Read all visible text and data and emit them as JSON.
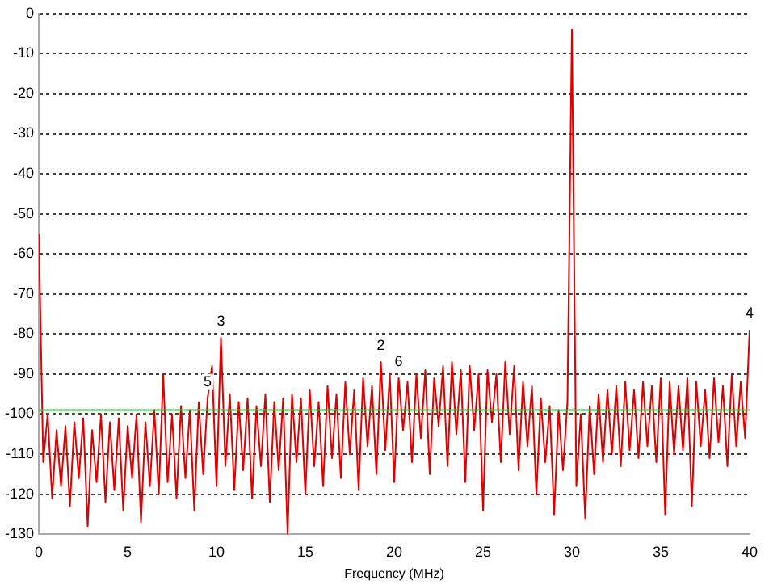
{
  "chart_data": {
    "type": "line",
    "xlabel": "Frequency (MHz)",
    "xlim": [
      0,
      40
    ],
    "xticks": [
      0,
      5,
      10,
      15,
      20,
      25,
      30,
      35,
      40
    ],
    "ylim": [
      -130,
      0
    ],
    "yticks": [
      0,
      -10,
      -20,
      -30,
      -40,
      -50,
      -60,
      -70,
      -80,
      -90,
      -100,
      -110,
      -120,
      -130
    ],
    "grid": "y",
    "legend": false,
    "marker": "none",
    "line_style": "solid",
    "ref_lines": [
      {
        "axis": "y",
        "value": -99,
        "color": "#3cb043"
      }
    ],
    "annotations": [
      {
        "text": "3",
        "x": 10.25,
        "y": -81
      },
      {
        "text": "5",
        "x": 9.5,
        "y": -96
      },
      {
        "text": "2",
        "x": 19.25,
        "y": -87
      },
      {
        "text": "6",
        "x": 20.25,
        "y": -91
      },
      {
        "text": "4",
        "x": 40,
        "y": -79
      }
    ],
    "series": [
      {
        "color": "#e00000",
        "x": [
          0,
          0.25,
          0.5,
          0.75,
          1,
          1.25,
          1.5,
          1.75,
          2,
          2.25,
          2.5,
          2.75,
          3,
          3.25,
          3.5,
          3.75,
          4,
          4.25,
          4.5,
          4.75,
          5,
          5.25,
          5.5,
          5.75,
          6,
          6.25,
          6.5,
          6.75,
          7,
          7.25,
          7.5,
          7.75,
          8,
          8.25,
          8.5,
          8.75,
          9,
          9.25,
          9.5,
          9.75,
          10,
          10.25,
          10.5,
          10.75,
          11,
          11.25,
          11.5,
          11.75,
          12,
          12.25,
          12.5,
          12.75,
          13,
          13.25,
          13.5,
          13.75,
          14,
          14.25,
          14.5,
          14.75,
          15,
          15.25,
          15.5,
          15.75,
          16,
          16.25,
          16.5,
          16.75,
          17,
          17.25,
          17.5,
          17.75,
          18,
          18.25,
          18.5,
          18.75,
          19,
          19.25,
          19.5,
          19.75,
          20,
          20.25,
          20.5,
          20.75,
          21,
          21.25,
          21.5,
          21.75,
          22,
          22.25,
          22.5,
          22.75,
          23,
          23.25,
          23.5,
          23.75,
          24,
          24.25,
          24.5,
          24.75,
          25,
          25.25,
          25.5,
          25.75,
          26,
          26.25,
          26.5,
          26.75,
          27,
          27.25,
          27.5,
          27.75,
          28,
          28.25,
          28.5,
          28.75,
          29,
          29.25,
          29.5,
          29.75,
          30,
          30.25,
          30.5,
          30.75,
          31,
          31.25,
          31.5,
          31.75,
          32,
          32.25,
          32.5,
          32.75,
          33,
          33.25,
          33.5,
          33.75,
          34,
          34.25,
          34.5,
          34.75,
          35,
          35.25,
          35.5,
          35.75,
          36,
          36.25,
          36.5,
          36.75,
          37,
          37.25,
          37.5,
          37.75,
          38,
          38.25,
          38.5,
          38.75,
          39,
          39.25,
          39.5,
          39.75,
          40
        ],
        "values": [
          -55,
          -112,
          -100,
          -121,
          -104,
          -118,
          -103,
          -123,
          -102,
          -116,
          -101,
          -128,
          -104,
          -117,
          -100,
          -122,
          -102,
          -119,
          -101,
          -124,
          -103,
          -116,
          -100,
          -127,
          -102,
          -118,
          -99,
          -120,
          -90,
          -117,
          -100,
          -121,
          -98,
          -116,
          -99,
          -124,
          -97,
          -115,
          -96,
          -88,
          -118,
          -81,
          -113,
          -95,
          -119,
          -97,
          -114,
          -96,
          -121,
          -98,
          -113,
          -95,
          -122,
          -97,
          -114,
          -96,
          -130,
          -95,
          -112,
          -96,
          -120,
          -94,
          -113,
          -97,
          -118,
          -93,
          -111,
          -95,
          -116,
          -92,
          -110,
          -94,
          -119,
          -91,
          -108,
          -93,
          -115,
          -87,
          -109,
          -90,
          -117,
          -91,
          -104,
          -92,
          -112,
          -90,
          -106,
          -89,
          -115,
          -91,
          -103,
          -88,
          -113,
          -87,
          -105,
          -89,
          -117,
          -88,
          -104,
          -90,
          -124,
          -89,
          -102,
          -90,
          -112,
          -87,
          -105,
          -88,
          -114,
          -92,
          -108,
          -93,
          -120,
          -96,
          -112,
          -98,
          -125,
          -99,
          -114,
          -97,
          -4,
          -118,
          -100,
          -126,
          -98,
          -115,
          -95,
          -112,
          -94,
          -110,
          -93,
          -113,
          -92,
          -109,
          -94,
          -111,
          -92,
          -108,
          -93,
          -112,
          -91,
          -125,
          -92,
          -110,
          -93,
          -109,
          -91,
          -123,
          -92,
          -108,
          -94,
          -111,
          -91,
          -107,
          -93,
          -113,
          -90,
          -108,
          -92,
          -106,
          -79
        ]
      }
    ]
  }
}
